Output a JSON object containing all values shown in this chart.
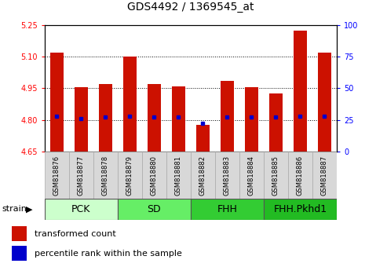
{
  "title": "GDS4492 / 1369545_at",
  "samples": [
    "GSM818876",
    "GSM818877",
    "GSM818878",
    "GSM818879",
    "GSM818880",
    "GSM818881",
    "GSM818882",
    "GSM818883",
    "GSM818884",
    "GSM818885",
    "GSM818886",
    "GSM818887"
  ],
  "bar_values": [
    5.12,
    4.955,
    4.97,
    5.1,
    4.97,
    4.96,
    4.775,
    4.985,
    4.955,
    4.925,
    5.225,
    5.12
  ],
  "percentile_values": [
    28,
    26,
    27,
    28,
    27,
    27,
    22,
    27,
    27,
    27,
    28,
    28
  ],
  "ylim_left": [
    4.65,
    5.25
  ],
  "ylim_right": [
    0,
    100
  ],
  "yticks_left": [
    4.65,
    4.8,
    4.95,
    5.1,
    5.25
  ],
  "yticks_right": [
    0,
    25,
    50,
    75,
    100
  ],
  "bar_color": "#cc1100",
  "dot_color": "#0000cc",
  "bar_bottom": 4.65,
  "groups": [
    {
      "label": "PCK",
      "start": 0,
      "end": 2,
      "color": "#ccffcc"
    },
    {
      "label": "SD",
      "start": 3,
      "end": 5,
      "color": "#66ee66"
    },
    {
      "label": "FHH",
      "start": 6,
      "end": 8,
      "color": "#33cc33"
    },
    {
      "label": "FHH.Pkhd1",
      "start": 9,
      "end": 11,
      "color": "#22bb22"
    }
  ],
  "cell_color": "#d8d8d8",
  "cell_edge_color": "#aaaaaa",
  "legend_red_label": "transformed count",
  "legend_blue_label": "percentile rank within the sample",
  "strain_label": "strain",
  "background_color": "#ffffff",
  "title_fontsize": 10,
  "tick_fontsize": 7,
  "sample_fontsize": 6,
  "group_fontsize": 9,
  "legend_fontsize": 8
}
